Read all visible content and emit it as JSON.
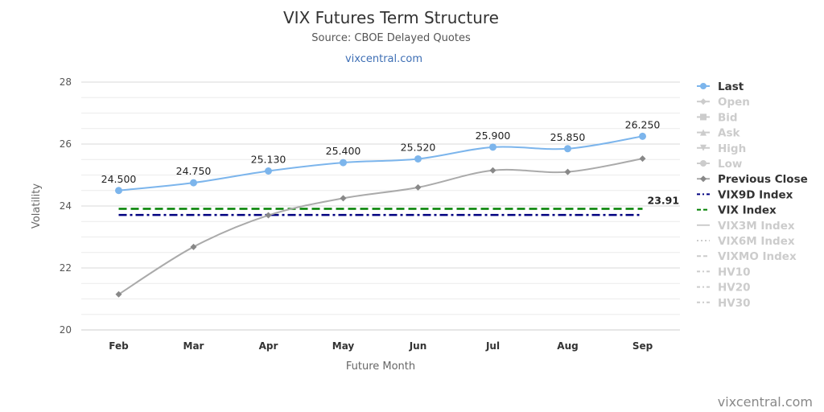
{
  "chart_data": {
    "type": "line",
    "title": "VIX Futures Term Structure",
    "subtitle": "Source: CBOE Delayed Quotes",
    "link": "vixcentral.com",
    "xlabel": "Future Month",
    "ylabel": "Volatility",
    "categories": [
      "Feb",
      "Mar",
      "Apr",
      "May",
      "Jun",
      "Jul",
      "Aug",
      "Sep"
    ],
    "ylim": [
      20,
      28
    ],
    "yticks": [
      20,
      22,
      24,
      26,
      28
    ],
    "grid": true,
    "legend_position": "right",
    "series": [
      {
        "name": "Last",
        "values": [
          24.5,
          24.75,
          25.13,
          25.4,
          25.52,
          25.9,
          25.85,
          26.25
        ],
        "labels": [
          "24.500",
          "24.750",
          "25.130",
          "25.400",
          "25.520",
          "25.900",
          "25.850",
          "26.250"
        ],
        "color": "#7cb5ec",
        "visible": true,
        "marker": "circle"
      },
      {
        "name": "Open",
        "visible": false,
        "marker": "diamond"
      },
      {
        "name": "Bid",
        "visible": false,
        "marker": "square"
      },
      {
        "name": "Ask",
        "visible": false,
        "marker": "triangle"
      },
      {
        "name": "High",
        "visible": false,
        "marker": "triangle-down"
      },
      {
        "name": "Low",
        "visible": false,
        "marker": "circle"
      },
      {
        "name": "Previous Close",
        "values": [
          21.15,
          22.68,
          23.7,
          24.25,
          24.6,
          25.15,
          25.1,
          25.53
        ],
        "color": "#aaaaaa",
        "marker_color": "#888888",
        "visible": true,
        "marker": "diamond"
      },
      {
        "name": "VIX9D Index",
        "value": 23.71,
        "color": "#000080",
        "visible": true,
        "dash": "dashdot"
      },
      {
        "name": "VIX Index",
        "value": 23.91,
        "label": "23.91",
        "color": "#008000",
        "visible": true,
        "dash": "dash"
      },
      {
        "name": "VIX3M Index",
        "visible": false,
        "dash": "solid"
      },
      {
        "name": "VIX6M Index",
        "visible": false,
        "dash": "dot"
      },
      {
        "name": "VIXMO Index",
        "visible": false,
        "dash": "dash"
      },
      {
        "name": "HV10",
        "visible": false,
        "dash": "dashdot"
      },
      {
        "name": "HV20",
        "visible": false,
        "dash": "dashdot"
      },
      {
        "name": "HV30",
        "visible": false,
        "dash": "dashdot"
      }
    ]
  },
  "credit": "vixcentral.com"
}
